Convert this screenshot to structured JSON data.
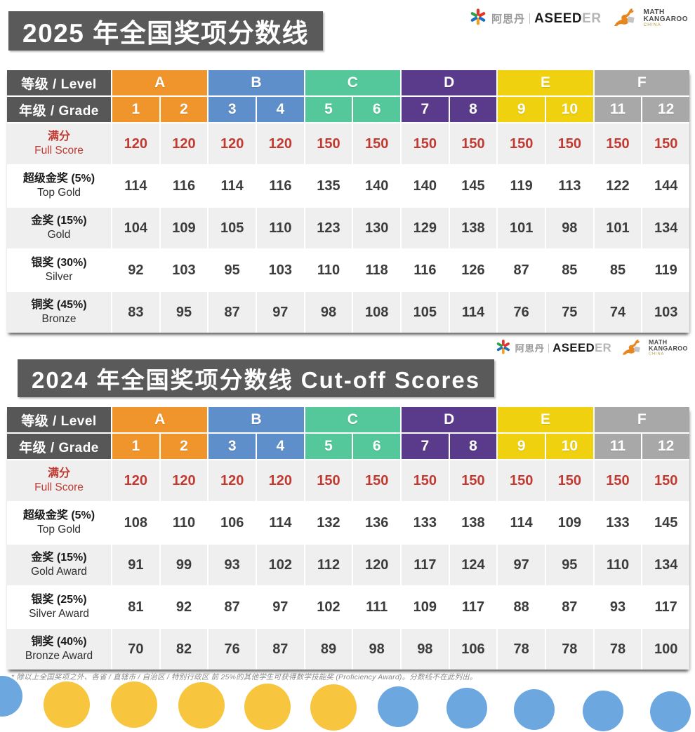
{
  "titles": {
    "t2025": "2025 年全国奖项分数线",
    "t2024": "2024 年全国奖项分数线 Cut-off Scores"
  },
  "logos": {
    "aseeder_cn": "阿思丹",
    "aseeder_bold": "ASEED",
    "aseeder_light": "ER",
    "kangaroo_line1": "MATH",
    "kangaroo_line2": "KANGAROO",
    "kangaroo_line3": "CHINA"
  },
  "header": {
    "level_label": "等级 / Level",
    "grade_label": "年级 / Grade"
  },
  "footnote": "* 除以上全国奖项之外、各省 / 直辖市 / 自治区 / 特别行政区 前 25%的其他学生可获得数学技能奖 (Proficiency Award)。分数线不在此列出。",
  "colors": {
    "banner": "#5A5A5A",
    "header_dark": "#575757",
    "red_text": "#C13A32",
    "zebra_gray": "#EFEFEF",
    "level_A": "#F0952B",
    "level_B": "#5E8FCB",
    "level_C": "#54C89B",
    "level_D": "#5A3B8B",
    "level_E": "#F0D110",
    "level_F": "#A8A8A8"
  },
  "chart_data": [
    {
      "type": "table",
      "title": "2025 年全国奖项分数线",
      "level_groups": [
        {
          "level": "A",
          "color": "#F0952B",
          "grades": [
            "1",
            "2"
          ]
        },
        {
          "level": "B",
          "color": "#5E8FCB",
          "grades": [
            "3",
            "4"
          ]
        },
        {
          "level": "C",
          "color": "#54C89B",
          "grades": [
            "5",
            "6"
          ]
        },
        {
          "level": "D",
          "color": "#5A3B8B",
          "grades": [
            "7",
            "8"
          ]
        },
        {
          "level": "E",
          "color": "#F0D110",
          "grades": [
            "9",
            "10"
          ]
        },
        {
          "level": "F",
          "color": "#A8A8A8",
          "grades": [
            "11",
            "12"
          ]
        }
      ],
      "rows": [
        {
          "label_cn": "满分",
          "label_en": "Full Score",
          "style": "red",
          "values": [
            120,
            120,
            120,
            120,
            150,
            150,
            150,
            150,
            150,
            150,
            150,
            150
          ]
        },
        {
          "label_cn": "超级金奖 (5%)",
          "label_en": "Top Gold",
          "style": "normal",
          "values": [
            114,
            116,
            114,
            116,
            135,
            140,
            140,
            145,
            119,
            113,
            122,
            144
          ]
        },
        {
          "label_cn": "金奖 (15%)",
          "label_en": "Gold",
          "style": "normal",
          "values": [
            104,
            109,
            105,
            110,
            123,
            130,
            129,
            138,
            101,
            98,
            101,
            134
          ]
        },
        {
          "label_cn": "银奖 (30%)",
          "label_en": "Silver",
          "style": "normal",
          "values": [
            92,
            103,
            95,
            103,
            110,
            118,
            116,
            126,
            87,
            85,
            85,
            119
          ]
        },
        {
          "label_cn": "铜奖 (45%)",
          "label_en": "Bronze",
          "style": "normal",
          "values": [
            83,
            95,
            87,
            97,
            98,
            108,
            105,
            114,
            76,
            75,
            74,
            103
          ]
        }
      ]
    },
    {
      "type": "table",
      "title": "2024 年全国奖项分数线 Cut-off Scores",
      "level_groups": [
        {
          "level": "A",
          "color": "#F0952B",
          "grades": [
            "1",
            "2"
          ]
        },
        {
          "level": "B",
          "color": "#5E8FCB",
          "grades": [
            "3",
            "4"
          ]
        },
        {
          "level": "C",
          "color": "#54C89B",
          "grades": [
            "5",
            "6"
          ]
        },
        {
          "level": "D",
          "color": "#5A3B8B",
          "grades": [
            "7",
            "8"
          ]
        },
        {
          "level": "E",
          "color": "#F0D110",
          "grades": [
            "9",
            "10"
          ]
        },
        {
          "level": "F",
          "color": "#A8A8A8",
          "grades": [
            "11",
            "12"
          ]
        }
      ],
      "rows": [
        {
          "label_cn": "满分",
          "label_en": "Full Score",
          "style": "red",
          "values": [
            120,
            120,
            120,
            120,
            150,
            150,
            150,
            150,
            150,
            150,
            150,
            150
          ]
        },
        {
          "label_cn": "超级金奖 (5%)",
          "label_en": "Top Gold",
          "style": "normal",
          "values": [
            108,
            110,
            106,
            114,
            132,
            136,
            133,
            138,
            114,
            109,
            133,
            145
          ]
        },
        {
          "label_cn": "金奖 (15%)",
          "label_en": "Gold Award",
          "style": "normal",
          "values": [
            91,
            99,
            93,
            102,
            112,
            120,
            117,
            124,
            97,
            95,
            110,
            134
          ]
        },
        {
          "label_cn": "银奖 (25%)",
          "label_en": "Silver Award",
          "style": "normal",
          "values": [
            81,
            92,
            87,
            97,
            102,
            111,
            109,
            117,
            88,
            87,
            93,
            117
          ]
        },
        {
          "label_cn": "铜奖 (40%)",
          "label_en": "Bronze Award",
          "style": "normal",
          "values": [
            70,
            82,
            76,
            87,
            89,
            98,
            98,
            106,
            78,
            78,
            78,
            100
          ]
        }
      ]
    }
  ]
}
